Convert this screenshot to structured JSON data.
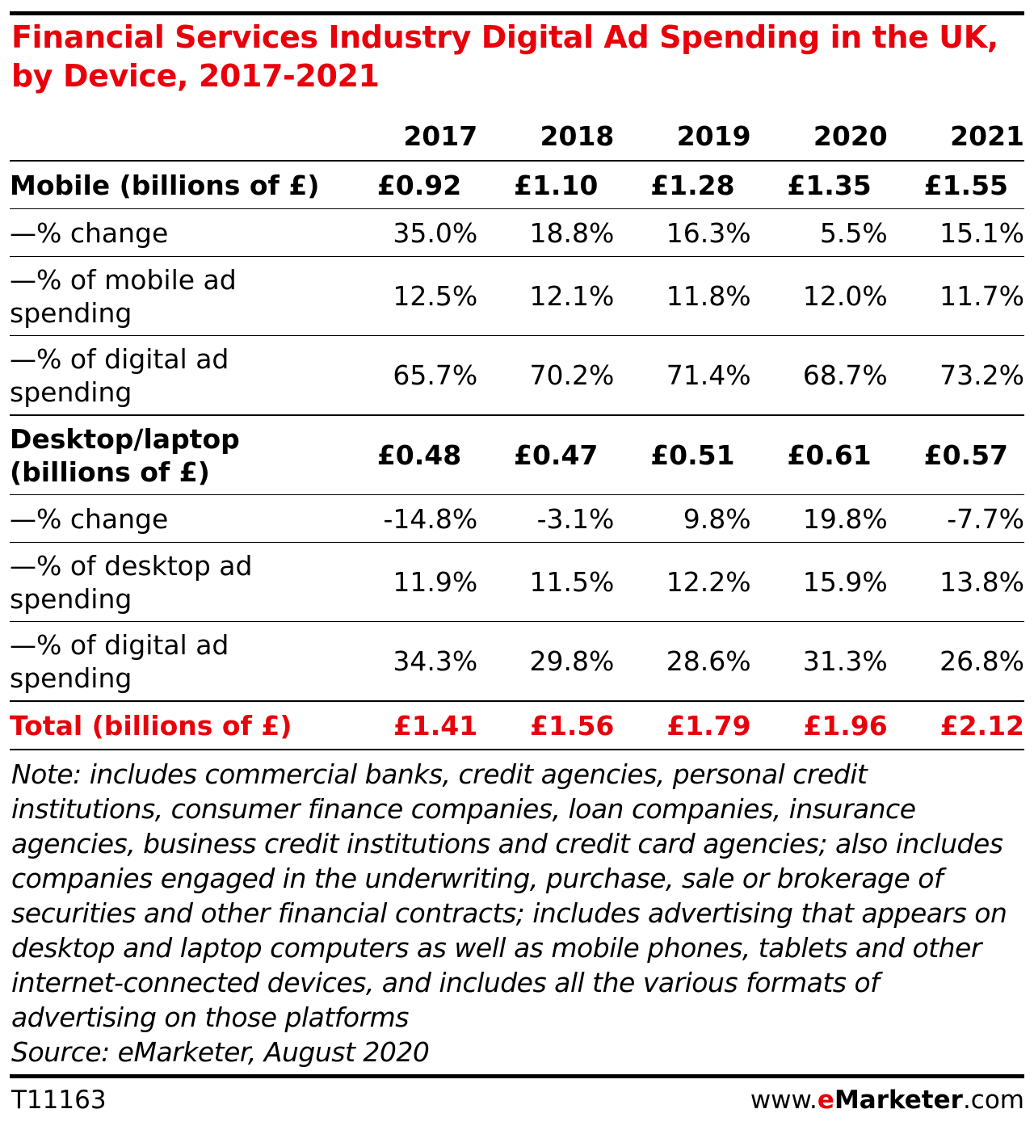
{
  "title_lines": [
    "Financial Services Industry Digital Ad Spending in the UK,",
    "by Device, 2017-2021"
  ],
  "colors": {
    "accent": "#e8000b",
    "text": "#000000"
  },
  "chart_data": {
    "type": "table",
    "title": "Financial Services Industry Digital Ad Spending in the UK, by Device, 2017-2021",
    "columns": [
      "2017",
      "2018",
      "2019",
      "2020",
      "2021"
    ],
    "rows": [
      {
        "label": "Mobile (billions of £)",
        "kind": "main",
        "values": [
          "£0.92",
          "£1.10",
          "£1.28",
          "£1.35",
          "£1.55"
        ]
      },
      {
        "label": "—% change",
        "kind": "sub",
        "values": [
          "35.0%",
          "18.8%",
          "16.3%",
          "5.5%",
          "15.1%"
        ]
      },
      {
        "label": "—% of mobile ad spending",
        "kind": "sub",
        "values": [
          "12.5%",
          "12.1%",
          "11.8%",
          "12.0%",
          "11.7%"
        ]
      },
      {
        "label": "—% of digital ad spending",
        "kind": "sub",
        "values": [
          "65.7%",
          "70.2%",
          "71.4%",
          "68.7%",
          "73.2%"
        ]
      },
      {
        "label": "Desktop/laptop (billions of £)",
        "kind": "main",
        "values": [
          "£0.48",
          "£0.47",
          "£0.51",
          "£0.61",
          "£0.57"
        ]
      },
      {
        "label": "—% change",
        "kind": "sub",
        "values": [
          "-14.8%",
          "-3.1%",
          "9.8%",
          "19.8%",
          "-7.7%"
        ]
      },
      {
        "label": "—% of desktop ad spending",
        "kind": "sub",
        "values": [
          "11.9%",
          "11.5%",
          "12.2%",
          "15.9%",
          "13.8%"
        ]
      },
      {
        "label": "—% of digital ad spending",
        "kind": "sub",
        "values": [
          "34.3%",
          "29.8%",
          "28.6%",
          "31.3%",
          "26.8%"
        ]
      },
      {
        "label": "Total (billions of £)",
        "kind": "total",
        "values": [
          "£1.41",
          "£1.56",
          "£1.79",
          "£1.96",
          "£2.12"
        ]
      }
    ]
  },
  "note": "Note: includes commercial banks, credit agencies, personal credit institutions, consumer finance companies, loan companies, insurance agencies, business credit institutions and credit card agencies; also includes companies engaged in the underwriting, purchase, sale or brokerage of securities and other financial contracts; includes advertising that appears on desktop and laptop computers as well as mobile phones, tablets and other internet-connected devices, and includes all the various formats of advertising on those platforms",
  "source": "Source: eMarketer, August 2020",
  "footer": {
    "table_id": "T11163",
    "site_prefix": "www.",
    "brand_e": "e",
    "brand_rest": "Marketer",
    "site_suffix": ".com"
  }
}
